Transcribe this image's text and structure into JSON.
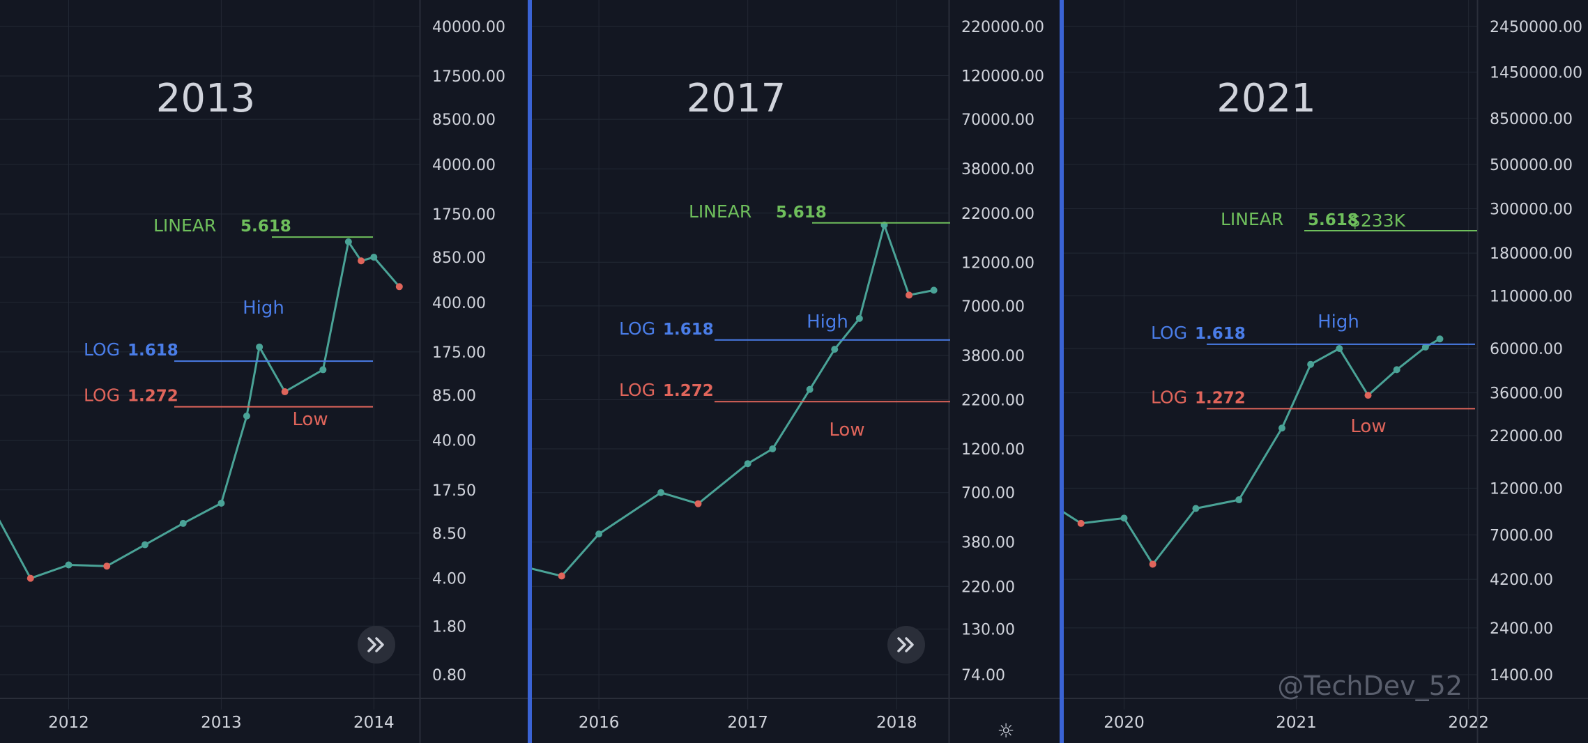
{
  "watermark": "@TechDev_52",
  "icons": {
    "forward": "double-chevron-right-icon",
    "settings": "sun-settings-icon"
  },
  "colors": {
    "bg": "#131722",
    "grid": "#232834",
    "up": "#4aa397",
    "down": "#e0655b",
    "linear": "#6fbf5c",
    "log618": "#4a7de8",
    "log272": "#e0655b",
    "label": "#d1d4dc"
  },
  "chart_data": [
    {
      "type": "line",
      "title": "2013",
      "y_scale": "log",
      "y_ticks": [
        "40000.00",
        "17500.00",
        "8500.00",
        "4000.00",
        "1750.00",
        "850.00",
        "400.00",
        "175.00",
        "85.00",
        "40.00",
        "17.50",
        "8.50",
        "4.00",
        "1.80",
        "0.80"
      ],
      "x_ticks": [
        "2012",
        "2013",
        "2014"
      ],
      "series": [
        {
          "x": [
            "2011-07",
            "2011-10",
            "2012-01",
            "2012-04",
            "2012-07",
            "2012-10",
            "2013-01",
            "2013-03",
            "2013-04",
            "2013-06",
            "2013-09",
            "2013-11",
            "2013-12",
            "2014-01",
            "2014-03"
          ],
          "values": [
            13,
            4,
            5,
            4.9,
            7,
            10,
            14,
            60,
            190,
            90,
            130,
            1100,
            800,
            850,
            520
          ]
        }
      ],
      "levels": [
        {
          "label": "LINEAR",
          "value": "5.618",
          "price": 1190,
          "color": "linear"
        },
        {
          "label": "LOG",
          "value": "1.618",
          "price": 150,
          "color": "log618"
        },
        {
          "label": "LOG",
          "value": "1.272",
          "price": 70,
          "color": "log272"
        }
      ],
      "annotations": [
        "High",
        "Low"
      ]
    },
    {
      "type": "line",
      "title": "2017",
      "y_scale": "log",
      "y_ticks": [
        "220000.00",
        "120000.00",
        "70000.00",
        "38000.00",
        "22000.00",
        "12000.00",
        "7000.00",
        "3800.00",
        "2200.00",
        "1200.00",
        "700.00",
        "380.00",
        "220.00",
        "130.00",
        "74.00"
      ],
      "x_ticks": [
        "2016",
        "2017",
        "2018"
      ],
      "series": [
        {
          "x": [
            "2015-07",
            "2015-10",
            "2016-01",
            "2016-06",
            "2016-09",
            "2017-01",
            "2017-03",
            "2017-06",
            "2017-08",
            "2017-10",
            "2017-12",
            "2018-02",
            "2018-04"
          ],
          "values": [
            280,
            250,
            420,
            700,
            610,
            1000,
            1200,
            2500,
            4100,
            6000,
            19000,
            8000,
            8500
          ]
        }
      ],
      "levels": [
        {
          "label": "LINEAR",
          "value": "5.618",
          "price": 19500,
          "color": "linear"
        },
        {
          "label": "LOG",
          "value": "1.618",
          "price": 4600,
          "color": "log618"
        },
        {
          "label": "LOG",
          "value": "1.272",
          "price": 2150,
          "color": "log272"
        }
      ],
      "annotations": [
        "High",
        "Low"
      ]
    },
    {
      "type": "line",
      "title": "2021",
      "y_scale": "log",
      "y_ticks": [
        "2450000.00",
        "1450000.00",
        "850000.00",
        "500000.00",
        "300000.00",
        "180000.00",
        "110000.00",
        "60000.00",
        "36000.00",
        "22000.00",
        "12000.00",
        "7000.00",
        "4200.00",
        "2400.00",
        "1400.00"
      ],
      "x_ticks": [
        "2020",
        "2021",
        "2022"
      ],
      "series": [
        {
          "x": [
            "2019-07",
            "2019-10",
            "2020-01",
            "2020-03",
            "2020-06",
            "2020-09",
            "2020-12",
            "2021-02",
            "2021-04",
            "2021-06",
            "2021-08",
            "2021-10",
            "2021-11"
          ],
          "values": [
            11000,
            8000,
            8500,
            5000,
            9500,
            10500,
            24000,
            50000,
            60000,
            35000,
            47000,
            61000,
            67000
          ]
        }
      ],
      "levels": [
        {
          "label": "LINEAR",
          "value": "5.618",
          "price": 233000,
          "color": "linear",
          "target": "$233K"
        },
        {
          "label": "LOG",
          "value": "1.618",
          "price": 63000,
          "color": "log618"
        },
        {
          "label": "LOG",
          "value": "1.272",
          "price": 30000,
          "color": "log272"
        }
      ],
      "annotations": [
        "High",
        "Low"
      ]
    }
  ]
}
